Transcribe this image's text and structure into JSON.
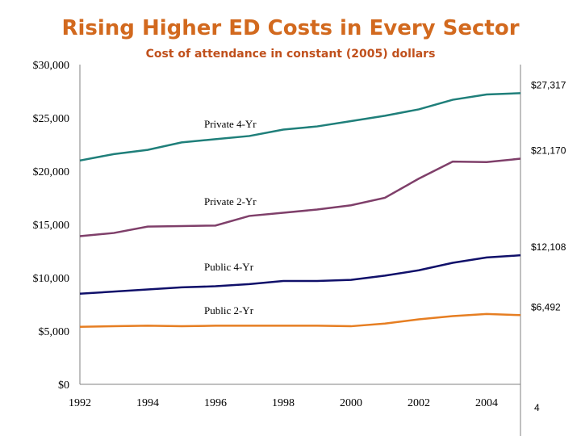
{
  "title": "Rising Higher ED Costs in Every Sector",
  "page_number": "4",
  "chart_data": {
    "type": "line",
    "title": "Cost of attendance in constant (2005) dollars",
    "x": [
      1992,
      1993,
      1994,
      1995,
      1996,
      1997,
      1998,
      1999,
      2000,
      2001,
      2002,
      2003,
      2004,
      2005
    ],
    "xticks": [
      "1992",
      "1994",
      "1996",
      "1998",
      "2000",
      "2002",
      "2004"
    ],
    "yticks": [
      "$0",
      "$5,000",
      "$10,000",
      "$15,000",
      "$20,000",
      "$25,000",
      "$30,000"
    ],
    "ylim": [
      0,
      30000
    ],
    "xlim": [
      1992,
      2005
    ],
    "grid": false,
    "series": [
      {
        "name": "Private 4-Yr",
        "color": "#1f7f7a",
        "end_label": "$27,317",
        "values": [
          21000,
          21600,
          22000,
          22700,
          23000,
          23300,
          23900,
          24200,
          24700,
          25200,
          25800,
          26700,
          27200,
          27317
        ]
      },
      {
        "name": "Private 2-Yr",
        "color": "#7f3f6a",
        "end_label": "$21,170",
        "values": [
          13900,
          14200,
          14800,
          14850,
          14900,
          15800,
          16100,
          16400,
          16800,
          17500,
          19300,
          20900,
          20850,
          21170
        ]
      },
      {
        "name": "Public 4-Yr",
        "color": "#10106a",
        "end_label": "$12,108",
        "values": [
          8500,
          8700,
          8900,
          9100,
          9200,
          9400,
          9700,
          9700,
          9800,
          10200,
          10700,
          11400,
          11900,
          12108
        ]
      },
      {
        "name": "Public 2-Yr",
        "color": "#e67e22",
        "end_label": "$6,492",
        "values": [
          5400,
          5450,
          5500,
          5450,
          5500,
          5500,
          5500,
          5500,
          5450,
          5700,
          6100,
          6400,
          6600,
          6492
        ]
      }
    ]
  }
}
